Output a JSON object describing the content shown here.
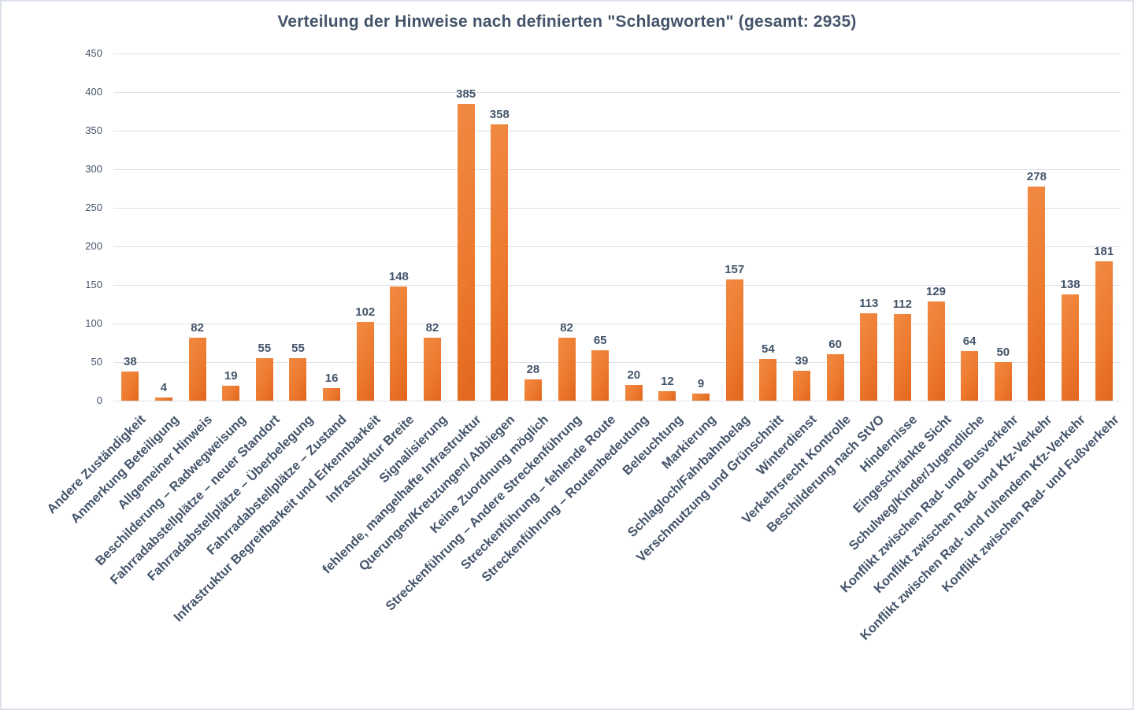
{
  "chart_data": {
    "type": "bar",
    "title": "Verteilung der Hinweise nach definierten \"Schlagworten\" (gesamt: 2935)",
    "total": 2935,
    "categories": [
      "Andere Zuständigkeit",
      "Anmerkung Beteiligung",
      "Allgemeiner Hinweis",
      "Beschilderung – Radwegweisung",
      "Fahrradabstellplätze – neuer Standort",
      "Fahrradabstellplätze – Überbelegung",
      "Fahrradabstellplätze – Zustand",
      "Infrastruktur Begreifbarkeit und Erkennbarkeit",
      "Infrastruktur Breite",
      "Signalisierung",
      "fehlende, mangelhafte Infrastruktur",
      "Querungen/Kreuzungen/ Abbiegen",
      "Keine Zuordnung möglich",
      "Streckenführung – Andere Streckenführung",
      "Streckenführung – fehlende Route",
      "Streckenführung – Routenbedeutung",
      "Beleuchtung",
      "Markierung",
      "Schlagloch/Fahrbahnbelag",
      "Verschmutzung und Grünschnitt",
      "Winterdienst",
      "Verkehrsrecht Kontrolle",
      "Beschilderung nach StVO",
      "Hindernisse",
      "Eingeschränkte Sicht",
      "Schulweg/Kinder/Jugendliche",
      "Konflikt zwischen Rad- und Busverkehr",
      "Konflikt zwischen Rad- und Kfz-Verkehr",
      "Konflikt zwischen Rad- und ruhendem Kfz-Verkehr",
      "Konflikt zwischen Rad- und Fußverkehr"
    ],
    "values": [
      38,
      4,
      82,
      19,
      55,
      55,
      16,
      102,
      148,
      82,
      385,
      358,
      28,
      82,
      65,
      20,
      12,
      9,
      157,
      54,
      39,
      60,
      113,
      112,
      129,
      64,
      50,
      278,
      138,
      181
    ],
    "xlabel": "",
    "ylabel": "",
    "ylim": [
      0,
      450
    ],
    "ytick_step": 50,
    "yticks": [
      0,
      50,
      100,
      150,
      200,
      250,
      300,
      350,
      400,
      450
    ],
    "grid": true,
    "legend": false,
    "colors": {
      "text": "#44546A",
      "gridline": "#DBE1EA",
      "frame_border": "#DCE1EA",
      "background": "#FFFFFF",
      "bar_light": "#F18A43",
      "bar_main": "#EC7A2E",
      "bar_dark": "#E2661E"
    }
  }
}
